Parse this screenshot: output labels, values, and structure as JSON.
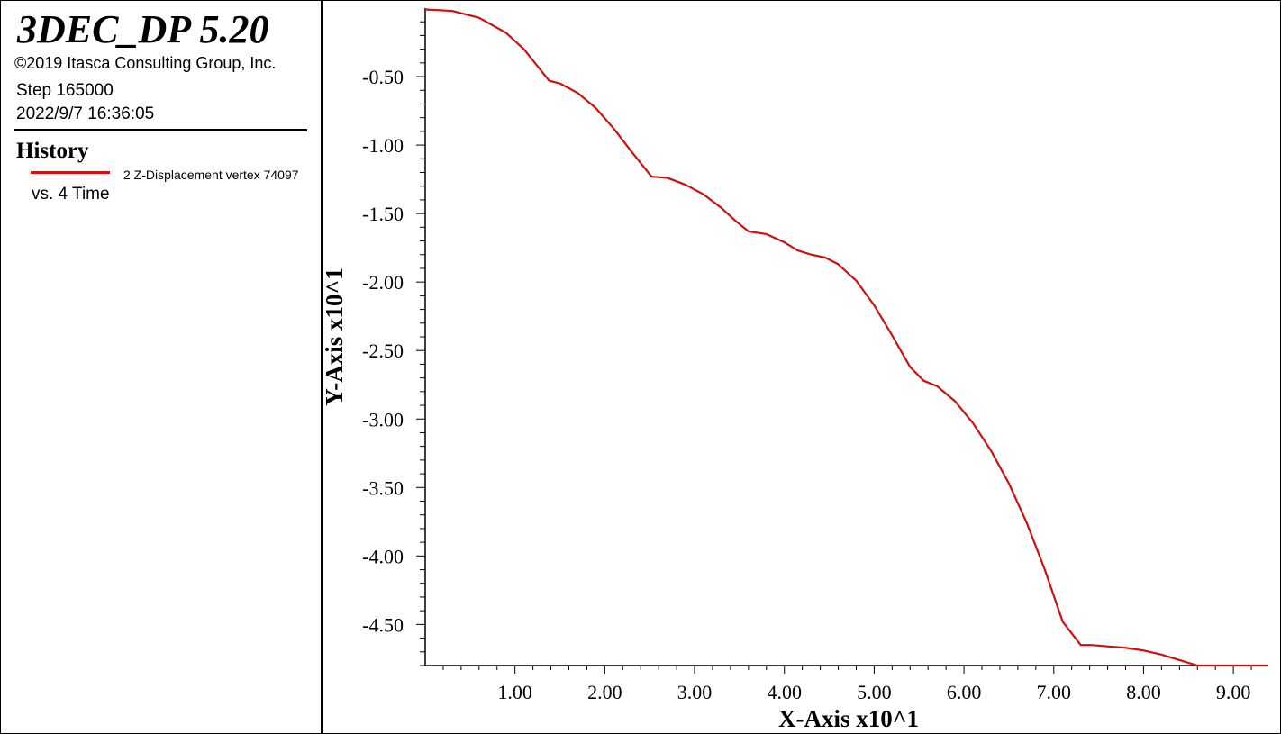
{
  "header": {
    "app_title": "3DEC_DP 5.20",
    "copyright": "©2019 Itasca Consulting Group, Inc.",
    "step": "Step 165000",
    "timestamp": "2022/9/7 16:36:05"
  },
  "legend": {
    "title": "History",
    "series_label": "2 Z-Displacement vertex 74097",
    "vs_label": "vs. 4 Time",
    "series_color": "#cc1111"
  },
  "chart_data": {
    "type": "line",
    "title": "",
    "xlabel": "X-Axis x10^1",
    "ylabel": "Y-Axis x10^1",
    "xlim": [
      0.0,
      9.39
    ],
    "ylim": [
      -4.8,
      0.0
    ],
    "x_ticks": [
      1.0,
      2.0,
      3.0,
      4.0,
      5.0,
      6.0,
      7.0,
      8.0,
      9.0
    ],
    "x_tick_labels": [
      "1.00",
      "2.00",
      "3.00",
      "4.00",
      "5.00",
      "6.00",
      "7.00",
      "8.00",
      "9.00"
    ],
    "y_ticks": [
      -0.5,
      -1.0,
      -1.5,
      -2.0,
      -2.5,
      -3.0,
      -3.5,
      -4.0,
      -4.5
    ],
    "y_tick_labels": [
      "-0.50",
      "-1.00",
      "-1.50",
      "-2.00",
      "-2.50",
      "-3.00",
      "-3.50",
      "-4.00",
      "-4.50"
    ],
    "grid": false,
    "legend_position": "left-panel",
    "series": [
      {
        "color": "#cc1111",
        "x": [
          0.0,
          0.3,
          0.6,
          0.9,
          1.1,
          1.38,
          1.5,
          1.7,
          1.9,
          2.1,
          2.3,
          2.52,
          2.7,
          2.9,
          3.1,
          3.3,
          3.45,
          3.6,
          3.8,
          4.0,
          4.15,
          4.3,
          4.45,
          4.6,
          4.8,
          5.0,
          5.2,
          5.4,
          5.55,
          5.7,
          5.9,
          6.1,
          6.3,
          6.5,
          6.7,
          6.9,
          7.1,
          7.3,
          7.42,
          7.6,
          7.8,
          8.0,
          8.2,
          8.4,
          8.6,
          9.39
        ],
        "y": [
          -0.01,
          -0.02,
          -0.07,
          -0.18,
          -0.3,
          -0.53,
          -0.55,
          -0.62,
          -0.73,
          -0.88,
          -1.05,
          -1.23,
          -1.24,
          -1.29,
          -1.36,
          -1.46,
          -1.55,
          -1.63,
          -1.65,
          -1.71,
          -1.77,
          -1.8,
          -1.82,
          -1.87,
          -1.99,
          -2.17,
          -2.39,
          -2.62,
          -2.72,
          -2.76,
          -2.87,
          -3.03,
          -3.23,
          -3.47,
          -3.76,
          -4.1,
          -4.48,
          -4.65,
          -4.65,
          -4.66,
          -4.67,
          -4.69,
          -4.72,
          -4.76,
          -4.8,
          -4.8
        ]
      }
    ]
  }
}
